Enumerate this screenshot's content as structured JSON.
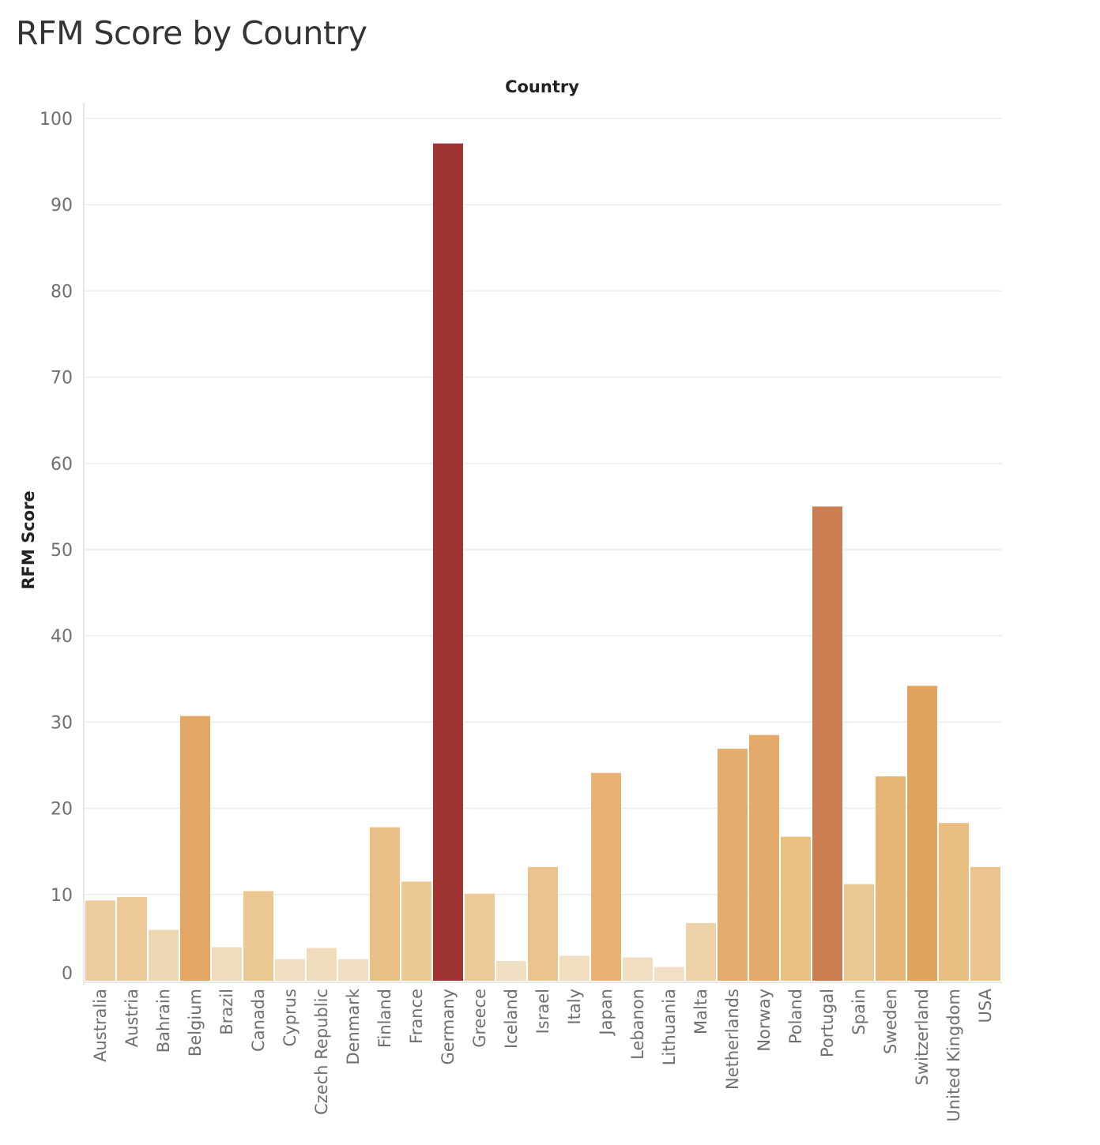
{
  "title": "RFM Score by Country",
  "chart_data": {
    "type": "bar",
    "title": "RFM Score by Country",
    "xlabel": "Country",
    "ylabel": "RFM Score",
    "ylim": [
      0,
      100
    ],
    "yticks": [
      0,
      10,
      20,
      30,
      40,
      50,
      60,
      70,
      80,
      90,
      100
    ],
    "grid": true,
    "categories": [
      "Australia",
      "Austria",
      "Bahrain",
      "Belgium",
      "Brazil",
      "Canada",
      "Cyprus",
      "Czech Republic",
      "Denmark",
      "Finland",
      "France",
      "Germany",
      "Greece",
      "Iceland",
      "Israel",
      "Italy",
      "Japan",
      "Lebanon",
      "Lithuania",
      "Malta",
      "Netherlands",
      "Norway",
      "Poland",
      "Portugal",
      "Spain",
      "Sweden",
      "Switzerland",
      "United Kingdom",
      "USA"
    ],
    "values": [
      9.3,
      9.7,
      5.9,
      30.7,
      3.9,
      10.4,
      2.5,
      3.8,
      2.5,
      17.8,
      11.5,
      97.1,
      10.1,
      2.3,
      13.2,
      2.9,
      24.1,
      2.7,
      1.6,
      6.7,
      26.9,
      28.5,
      16.7,
      55.0,
      11.2,
      23.7,
      34.2,
      18.3,
      13.2
    ],
    "colors": [
      "#edcc9e",
      "#edc99a",
      "#efd7b3",
      "#e2a665",
      "#f0dcbd",
      "#ebc892",
      "#f1dfc3",
      "#f0dbbb",
      "#f1dfc3",
      "#e8bf84",
      "#ebc894",
      "#9e3532",
      "#ecca97",
      "#f1dfc3",
      "#eac48c",
      "#f1dec1",
      "#e7b274",
      "#f1dec1",
      "#f1e0c5",
      "#eed2aa",
      "#e3ac6c",
      "#e3aa6b",
      "#e8c084",
      "#cb7e51",
      "#ebc893",
      "#e6b676",
      "#e1a360",
      "#e8be82",
      "#eac48c"
    ]
  }
}
